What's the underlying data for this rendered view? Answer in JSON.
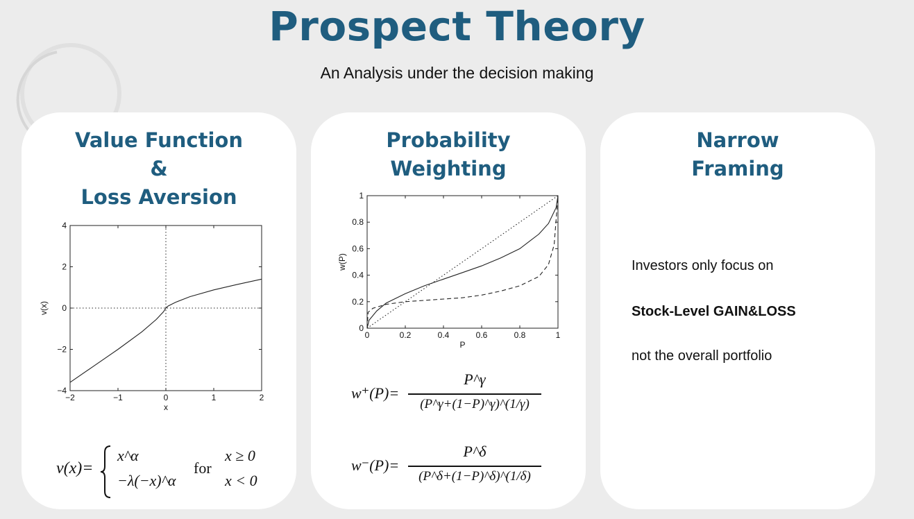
{
  "header": {
    "title": "Prospect Theory",
    "subtitle": "An Analysis under the decision making"
  },
  "colors": {
    "accent": "#1f5d7f",
    "background": "#ececec",
    "card": "#ffffff"
  },
  "cards": [
    {
      "heading_lines": [
        "Value Function",
        "&",
        "Loss Aversion"
      ],
      "formula": {
        "lhs": "v(x)=",
        "case1_expr": "x^α",
        "case2_expr": "−λ(−x)^α",
        "for_word": "for",
        "cond1": "x ≥ 0",
        "cond2": "x < 0"
      }
    },
    {
      "heading_lines": [
        "Probability",
        "Weighting"
      ],
      "formula_plus": {
        "lhs": "w⁺(P)=",
        "numerator": "P^γ",
        "denominator": "(P^γ+(1−P)^γ)^(1/γ)"
      },
      "formula_minus": {
        "lhs": "w⁻(P)=",
        "numerator": "P^δ",
        "denominator": "(P^δ+(1−P)^δ)^(1/δ)"
      }
    },
    {
      "heading_lines": [
        "Narrow",
        "Framing"
      ],
      "lines": [
        "Investors only focus on",
        "Stock-Level GAIN&LOSS",
        "not the overall portfolio"
      ]
    }
  ],
  "chart_data": [
    {
      "type": "line",
      "title": "",
      "xlabel": "x",
      "ylabel": "v(x)",
      "xlim": [
        -2,
        2
      ],
      "ylim": [
        -4,
        4
      ],
      "x_ticks": [
        "−2",
        "−1",
        "0",
        "1",
        "2"
      ],
      "y_ticks": [
        "−4",
        "−2",
        "0",
        "2",
        "4"
      ],
      "series": [
        {
          "name": "v(x)",
          "style": "solid",
          "x": [
            -2,
            -1.5,
            -1,
            -0.5,
            -0.2,
            -0.05,
            0,
            0.05,
            0.2,
            0.5,
            1,
            1.5,
            2
          ],
          "y": [
            -3.6,
            -2.8,
            -2.0,
            -1.15,
            -0.55,
            -0.18,
            0,
            0.1,
            0.28,
            0.55,
            0.88,
            1.15,
            1.4
          ]
        }
      ],
      "reference_lines": [
        "x=0 dotted",
        "y=0 dotted"
      ]
    },
    {
      "type": "line",
      "title": "",
      "xlabel": "P",
      "ylabel": "w(P)",
      "xlim": [
        0,
        1
      ],
      "ylim": [
        0,
        1
      ],
      "x_ticks": [
        "0",
        "0.2",
        "0.4",
        "0.6",
        "0.8",
        "1"
      ],
      "y_ticks": [
        "0",
        "0.2",
        "0.4",
        "0.6",
        "0.8",
        "1"
      ],
      "series": [
        {
          "name": "w+(P)",
          "style": "solid",
          "x": [
            0,
            0.01,
            0.05,
            0.1,
            0.2,
            0.3,
            0.4,
            0.5,
            0.6,
            0.7,
            0.8,
            0.9,
            0.95,
            0.99,
            1
          ],
          "y": [
            0,
            0.06,
            0.13,
            0.19,
            0.26,
            0.32,
            0.37,
            0.42,
            0.47,
            0.53,
            0.6,
            0.71,
            0.79,
            0.91,
            1
          ]
        },
        {
          "name": "w-(P)",
          "style": "dashed",
          "x": [
            0,
            0.005,
            0.03,
            0.1,
            0.2,
            0.3,
            0.4,
            0.5,
            0.6,
            0.7,
            0.8,
            0.9,
            0.95,
            0.98,
            1
          ],
          "y": [
            0,
            0.12,
            0.15,
            0.18,
            0.2,
            0.21,
            0.22,
            0.23,
            0.25,
            0.28,
            0.32,
            0.39,
            0.48,
            0.63,
            1
          ]
        },
        {
          "name": "w(P)=P",
          "style": "dotted",
          "x": [
            0,
            1
          ],
          "y": [
            0,
            1
          ]
        }
      ]
    }
  ]
}
